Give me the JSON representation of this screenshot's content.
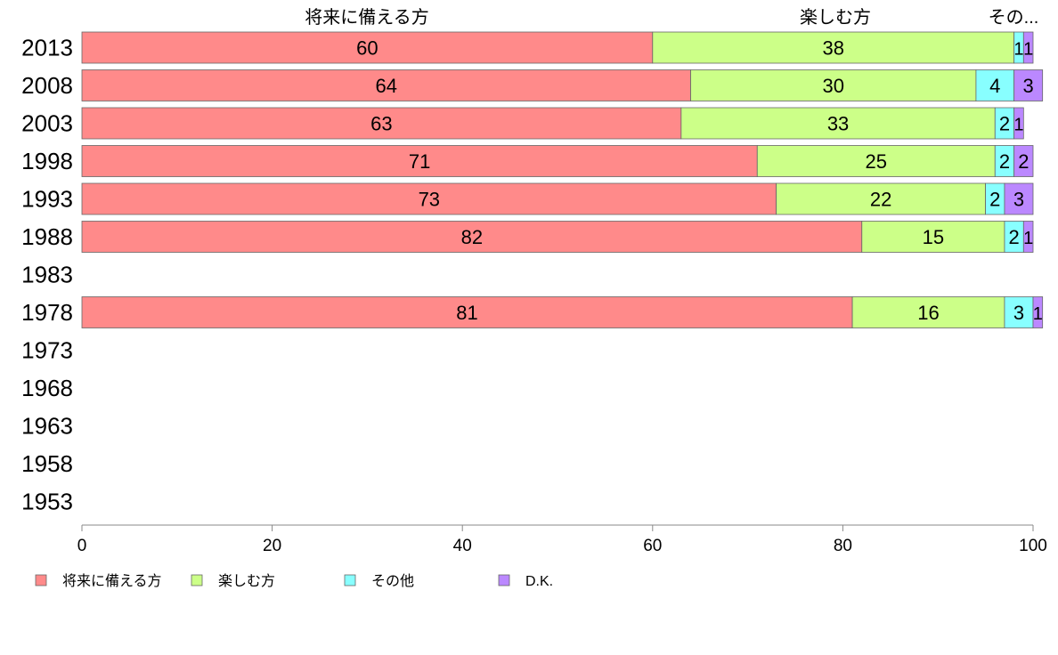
{
  "chart_data": {
    "type": "bar",
    "orientation": "horizontal",
    "stacked": true,
    "categories": [
      "2013",
      "2008",
      "2003",
      "1998",
      "1993",
      "1988",
      "1983",
      "1978",
      "1973",
      "1968",
      "1963",
      "1958",
      "1953"
    ],
    "series": [
      {
        "name": "将来に備える方",
        "color": "#FF8A8A",
        "values": [
          60,
          64,
          63,
          71,
          73,
          82,
          null,
          81,
          null,
          null,
          null,
          null,
          null
        ]
      },
      {
        "name": "楽しむ方",
        "color": "#CCFF88",
        "values": [
          38,
          30,
          33,
          25,
          22,
          15,
          null,
          16,
          null,
          null,
          null,
          null,
          null
        ]
      },
      {
        "name": "その他",
        "color": "#88FFFF",
        "values": [
          1,
          4,
          2,
          2,
          2,
          2,
          null,
          3,
          null,
          null,
          null,
          null,
          null
        ]
      },
      {
        "name": "D.K.",
        "color": "#BB88FF",
        "values": [
          1,
          3,
          1,
          2,
          3,
          1,
          null,
          1,
          null,
          null,
          null,
          null,
          null
        ]
      }
    ],
    "top_labels": [
      "将来に備える方",
      "楽しむ方",
      "その..."
    ],
    "xlim": [
      0,
      100
    ],
    "xticks": [
      "0",
      "20",
      "40",
      "60",
      "80",
      "100"
    ],
    "legend": "bottom-left",
    "grid": false
  }
}
